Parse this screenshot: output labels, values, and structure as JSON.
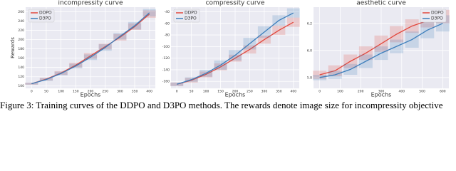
{
  "chart_data": [
    {
      "type": "line",
      "title": "incompressity curve",
      "x_label": "Epochs",
      "y_label": "Rewards",
      "x": [
        0,
        50,
        100,
        150,
        200,
        250,
        300,
        350,
        400
      ],
      "series": [
        {
          "name": "DDPO",
          "color": "#e2483d",
          "values": [
            105,
            115,
            128,
            145,
            165,
            185,
            205,
            228,
            255
          ],
          "error": [
            2,
            3,
            4,
            5,
            6,
            6,
            7,
            7,
            8
          ]
        },
        {
          "name": "D3PO",
          "color": "#3b7dbb",
          "values": [
            105,
            114,
            127,
            143,
            162,
            183,
            207,
            230,
            258
          ],
          "error": [
            2,
            3,
            4,
            5,
            6,
            7,
            7,
            8,
            8
          ]
        }
      ],
      "xlim": [
        -20,
        420
      ],
      "xticks": [
        0,
        50,
        100,
        150,
        200,
        250,
        300,
        350,
        400
      ],
      "ylim": [
        95,
        270
      ],
      "yticks": [
        100,
        120,
        140,
        160,
        180,
        200,
        220,
        240,
        260
      ],
      "grid": true,
      "legend": "upper-left"
    },
    {
      "type": "line",
      "title": "compressity curve",
      "x_label": "Epochs",
      "x": [
        0,
        50,
        100,
        150,
        200,
        250,
        300,
        350,
        400
      ],
      "series": [
        {
          "name": "DDPO",
          "color": "#e2483d",
          "values": [
            -165,
            -158,
            -148,
            -135,
            -120,
            -105,
            -88,
            -72,
            -58
          ],
          "error": [
            3,
            4,
            5,
            6,
            6,
            7,
            7,
            8,
            8
          ]
        },
        {
          "name": "D3PO",
          "color": "#3b7dbb",
          "values": [
            -165,
            -157,
            -146,
            -132,
            -115,
            -95,
            -75,
            -55,
            -42
          ],
          "error": [
            3,
            4,
            6,
            8,
            9,
            10,
            10,
            9,
            8
          ]
        }
      ],
      "xlim": [
        -20,
        420
      ],
      "xticks": [
        0,
        50,
        100,
        150,
        200,
        250,
        300,
        350,
        400
      ],
      "ylim": [
        -172,
        -32
      ],
      "yticks": [
        -160,
        -140,
        -120,
        -100,
        -80,
        -60,
        -40
      ],
      "grid": true,
      "legend": "upper-left"
    },
    {
      "type": "line",
      "title": "aesthetic curve",
      "x_label": "Epochs",
      "x": [
        0,
        75,
        150,
        225,
        300,
        375,
        450,
        525,
        600
      ],
      "series": [
        {
          "name": "DDPO",
          "color": "#e2483d",
          "values": [
            5.82,
            5.85,
            5.92,
            5.98,
            6.05,
            6.12,
            6.18,
            6.22,
            6.25
          ],
          "error": [
            0.03,
            0.04,
            0.05,
            0.05,
            0.06,
            0.06,
            0.05,
            0.05,
            0.05
          ]
        },
        {
          "name": "D3PO",
          "color": "#3b7dbb",
          "values": [
            5.8,
            5.82,
            5.86,
            5.92,
            5.98,
            6.03,
            6.08,
            6.15,
            6.2
          ],
          "error": [
            0.02,
            0.03,
            0.04,
            0.05,
            0.05,
            0.05,
            0.06,
            0.06,
            0.06
          ]
        }
      ],
      "xlim": [
        -30,
        630
      ],
      "xticks": [
        0,
        100,
        200,
        300,
        400,
        500,
        600
      ],
      "ylim": [
        5.72,
        6.32
      ],
      "yticks": [
        {
          "value": 5.8,
          "label": "5.8"
        },
        {
          "value": 6.0,
          "label": "6.0"
        },
        {
          "value": 6.2,
          "label": "6.2"
        }
      ],
      "grid": true,
      "legend": "upper-right"
    }
  ],
  "caption": "Figure 3: Training curves of the DDPO and D3PO methods. The rewards denote image size for incompressity objective"
}
